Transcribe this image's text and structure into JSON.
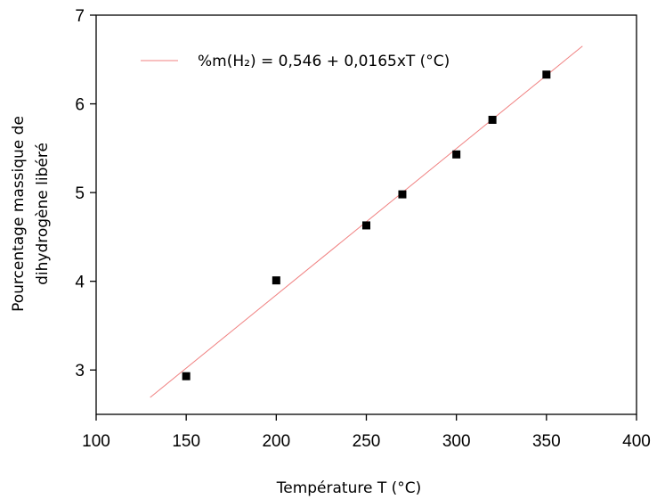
{
  "chart_data": {
    "type": "scatter",
    "title": "",
    "xlabel": "Température T (°C)",
    "ylabel_lines": [
      "Pourcentage massique de",
      "dihydrogène libéré"
    ],
    "xlim": [
      100,
      400
    ],
    "ylim": [
      2.5,
      7
    ],
    "xticks": [
      100,
      150,
      200,
      250,
      300,
      350,
      400
    ],
    "yticks": [
      3,
      4,
      5,
      6,
      7
    ],
    "grid": false,
    "legend_position": "top-left",
    "series": [
      {
        "name": "%m(H₂) = 0,546 + 0,0165xT (°C)",
        "kind": "line",
        "color": "#f08080",
        "intercept": 0.546,
        "slope": 0.0165,
        "x_range": [
          130,
          370
        ]
      },
      {
        "kind": "scatter",
        "color": "#000000",
        "marker": "square",
        "x": [
          150,
          200,
          250,
          270,
          300,
          320,
          350
        ],
        "y": [
          2.93,
          4.01,
          4.63,
          4.98,
          5.43,
          5.82,
          6.33
        ]
      }
    ]
  }
}
